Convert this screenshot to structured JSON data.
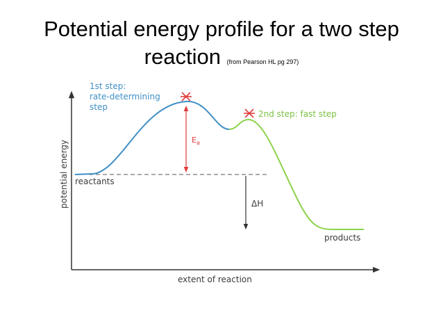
{
  "title": {
    "line1": "Potential energy profile for a two step",
    "line2": "reaction",
    "note": "(from Pearson HL pg 297)"
  },
  "diagram": {
    "y_axis_label": "potential energy",
    "x_axis_label": "extent of reaction",
    "step1_label": [
      "1st step:",
      "rate-determining",
      "step"
    ],
    "step2_label": "2nd step: fast step",
    "ea_label": "E",
    "ea_subscript": "a",
    "dh_label": "ΔH",
    "reactants_label": "reactants",
    "products_label": "products",
    "colors": {
      "step1_curve": "#3f8fc6",
      "step2_curve": "#8cd24a",
      "transition_marker": "#e03c3c",
      "activation_arrow": "#e03c3c",
      "axes": "#333333"
    }
  }
}
